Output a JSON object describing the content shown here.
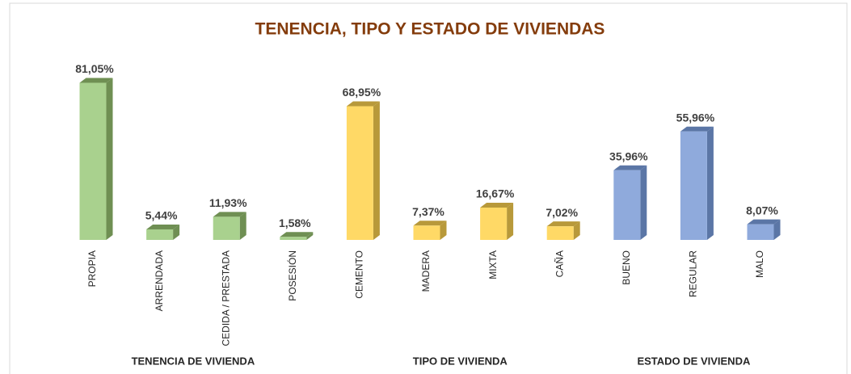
{
  "chart_data": {
    "type": "bar3d",
    "title": "TENENCIA, TIPO Y ESTADO DE VIVIENDAS",
    "groups": [
      {
        "name": "TENENCIA DE VIVIENDA",
        "color": "#a9d18e",
        "side_color": "#6f8f53",
        "categories": [
          "PROPIA",
          "ARRENDADA",
          "CEDIDA / PRESTADA",
          "POSESIÓN"
        ],
        "values": [
          81.05,
          5.44,
          11.93,
          1.58
        ],
        "value_labels": [
          "81,05%",
          "5,44%",
          "11,93%",
          "1,58%"
        ]
      },
      {
        "name": "TIPO DE VIVIENDA",
        "color": "#ffd966",
        "side_color": "#b8993a",
        "categories": [
          "CEMENTO",
          "MADERA",
          "MIXTA",
          "CAÑA"
        ],
        "values": [
          68.95,
          7.37,
          16.67,
          7.02
        ],
        "value_labels": [
          "68,95%",
          "7,37%",
          "16,67%",
          "7,02%"
        ]
      },
      {
        "name": "ESTADO DE VIVIENDA",
        "color": "#8faadc",
        "side_color": "#5b76a6",
        "categories": [
          "BUENO",
          "REGULAR",
          "MALO"
        ],
        "values": [
          35.96,
          55.96,
          8.07
        ],
        "value_labels": [
          "35,96%",
          "55,96%",
          "8,07%"
        ]
      }
    ]
  }
}
